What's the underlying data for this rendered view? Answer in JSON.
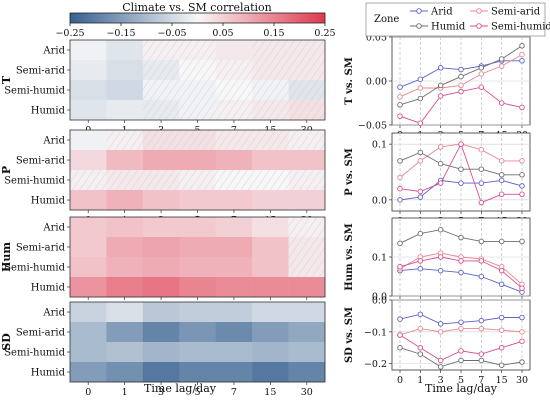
{
  "figure": {
    "colorbar": {
      "title": "Climate vs. SM correlation",
      "min": -0.25,
      "max": 0.25,
      "ticks": [
        "−0.25",
        "−0.15",
        "−0.05",
        "0.05",
        "0.15",
        "0.25"
      ],
      "low_color": "#35608f",
      "mid_color": "#f7f7f8",
      "high_color": "#e0384d"
    },
    "x_label": "Time lag/day",
    "lags": [
      "0",
      "1",
      "3",
      "5",
      "7",
      "15",
      "30"
    ],
    "zones": [
      "Arid",
      "Semi-arid",
      "Semi-humid",
      "Humid"
    ],
    "legend": {
      "title": "Zone",
      "entries": [
        "Arid",
        "Semi-arid",
        "Humid",
        "Semi-humid"
      ]
    },
    "zone_colors": {
      "Arid": "#5b62c9",
      "Semi-arid": "#e8878f",
      "Semi-humid": "#d94f8e",
      "Humid": "#6e6e6e"
    }
  },
  "chart_data": [
    {
      "type": "heatmap",
      "title": "T",
      "rows": [
        "Arid",
        "Semi-arid",
        "Semi-humid",
        "Humid"
      ],
      "columns": [
        "0",
        "1",
        "3",
        "5",
        "7",
        "15",
        "30"
      ],
      "values": [
        [
          -0.01,
          -0.03,
          0.01,
          0.01,
          0.02,
          0.02,
          0.02
        ],
        [
          -0.02,
          -0.04,
          -0.02,
          0.0,
          0.01,
          0.02,
          0.02
        ],
        [
          -0.04,
          -0.05,
          -0.01,
          -0.01,
          0.0,
          -0.01,
          -0.03
        ],
        [
          -0.03,
          -0.02,
          -0.02,
          -0.01,
          0.01,
          0.02,
          0.03
        ]
      ],
      "hatched": [
        [
          false,
          false,
          true,
          true,
          false,
          true,
          true
        ],
        [
          false,
          false,
          true,
          true,
          true,
          true,
          true
        ],
        [
          false,
          false,
          true,
          true,
          true,
          true,
          true
        ],
        [
          false,
          false,
          true,
          true,
          true,
          true,
          true
        ]
      ]
    },
    {
      "type": "heatmap",
      "title": "P",
      "rows": [
        "Arid",
        "Semi-arid",
        "Semi-humid",
        "Humid"
      ],
      "columns": [
        "0",
        "1",
        "3",
        "5",
        "7",
        "15",
        "30"
      ],
      "values": [
        [
          -0.01,
          0.01,
          0.03,
          0.03,
          0.02,
          0.02,
          0.01
        ],
        [
          0.04,
          0.08,
          0.1,
          0.1,
          0.09,
          0.07,
          0.07
        ],
        [
          0.01,
          0.02,
          0.02,
          0.01,
          0.0,
          0.0,
          0.01
        ],
        [
          0.07,
          0.09,
          0.07,
          0.06,
          0.06,
          0.05,
          0.05
        ]
      ],
      "hatched": [
        [
          false,
          true,
          true,
          true,
          true,
          true,
          true
        ],
        [
          false,
          false,
          false,
          false,
          false,
          false,
          false
        ],
        [
          true,
          true,
          true,
          true,
          true,
          true,
          true
        ],
        [
          false,
          false,
          false,
          false,
          false,
          false,
          false
        ]
      ]
    },
    {
      "type": "heatmap",
      "title": "Hum",
      "rows": [
        "Arid",
        "Semi-arid",
        "Semi-humid",
        "Humid"
      ],
      "columns": [
        "0",
        "1",
        "3",
        "5",
        "7",
        "15",
        "30"
      ],
      "values": [
        [
          0.06,
          0.07,
          0.06,
          0.06,
          0.05,
          0.03,
          0.01
        ],
        [
          0.06,
          0.1,
          0.11,
          0.1,
          0.1,
          0.07,
          0.02
        ],
        [
          0.07,
          0.09,
          0.1,
          0.09,
          0.09,
          0.07,
          0.02
        ],
        [
          0.13,
          0.16,
          0.17,
          0.15,
          0.14,
          0.14,
          0.14
        ]
      ],
      "hatched": [
        [
          false,
          false,
          false,
          false,
          false,
          false,
          true
        ],
        [
          false,
          false,
          false,
          false,
          false,
          false,
          true
        ],
        [
          false,
          false,
          false,
          false,
          false,
          false,
          true
        ],
        [
          false,
          false,
          false,
          false,
          false,
          false,
          false
        ]
      ]
    },
    {
      "type": "heatmap",
      "title": "SD",
      "rows": [
        "Arid",
        "Semi-arid",
        "Semi-humid",
        "Humid"
      ],
      "columns": [
        "0",
        "1",
        "3",
        "5",
        "7",
        "15",
        "30"
      ],
      "values": [
        [
          -0.06,
          -0.04,
          -0.08,
          -0.07,
          -0.07,
          -0.05,
          -0.05
        ],
        [
          -0.1,
          -0.15,
          -0.19,
          -0.16,
          -0.18,
          -0.15,
          -0.13
        ],
        [
          -0.1,
          -0.09,
          -0.11,
          -0.1,
          -0.1,
          -0.11,
          -0.1
        ],
        [
          -0.15,
          -0.17,
          -0.21,
          -0.19,
          -0.19,
          -0.21,
          -0.19
        ]
      ],
      "hatched": [
        [
          false,
          false,
          false,
          false,
          false,
          false,
          false
        ],
        [
          false,
          false,
          false,
          false,
          false,
          false,
          false
        ],
        [
          false,
          false,
          false,
          false,
          false,
          false,
          false
        ],
        [
          false,
          false,
          false,
          false,
          false,
          false,
          false
        ]
      ]
    },
    {
      "type": "line",
      "ylabel": "T vs. SM",
      "x": [
        "0",
        "1",
        "3",
        "5",
        "7",
        "15",
        "30"
      ],
      "ylim": [
        -0.05,
        0.05
      ],
      "yticks": [
        "−0.05",
        "0.00",
        "0.05"
      ],
      "grid": true,
      "series": [
        {
          "name": "Arid",
          "values": [
            -0.007,
            0.002,
            0.015,
            0.013,
            0.017,
            0.023,
            0.023
          ]
        },
        {
          "name": "Semi-arid",
          "values": [
            -0.018,
            -0.008,
            -0.008,
            -0.005,
            0.008,
            0.017,
            0.03
          ]
        },
        {
          "name": "Humid",
          "values": [
            -0.027,
            -0.02,
            -0.005,
            0.005,
            0.015,
            0.025,
            0.04
          ]
        },
        {
          "name": "Semi-humid",
          "values": [
            -0.04,
            -0.048,
            -0.017,
            -0.012,
            -0.007,
            -0.025,
            -0.03
          ]
        }
      ]
    },
    {
      "type": "line",
      "ylabel": "P vs. SM",
      "x": [
        "0",
        "1",
        "3",
        "5",
        "7",
        "15",
        "30"
      ],
      "ylim": [
        -0.02,
        0.12
      ],
      "yticks": [
        "0.0",
        "0.1"
      ],
      "grid": true,
      "series": [
        {
          "name": "Arid",
          "values": [
            0.0,
            0.005,
            0.035,
            0.03,
            0.03,
            0.035,
            0.025
          ]
        },
        {
          "name": "Semi-arid",
          "values": [
            0.04,
            0.07,
            0.095,
            0.1,
            0.09,
            0.07,
            0.07
          ]
        },
        {
          "name": "Humid",
          "values": [
            0.07,
            0.085,
            0.065,
            0.055,
            0.055,
            0.045,
            0.045
          ]
        },
        {
          "name": "Semi-humid",
          "values": [
            0.02,
            0.015,
            0.03,
            0.1,
            -0.005,
            0.01,
            0.01
          ]
        }
      ]
    },
    {
      "type": "line",
      "ylabel": "Hum vs. SM",
      "x": [
        "0",
        "1",
        "3",
        "5",
        "7",
        "15",
        "30"
      ],
      "ylim": [
        0.0,
        0.2
      ],
      "yticks": [
        "0.0",
        "0.1"
      ],
      "grid": true,
      "series": [
        {
          "name": "Arid",
          "values": [
            0.065,
            0.07,
            0.065,
            0.06,
            0.05,
            0.03,
            0.01
          ]
        },
        {
          "name": "Semi-arid",
          "values": [
            0.07,
            0.1,
            0.11,
            0.1,
            0.095,
            0.075,
            0.03
          ]
        },
        {
          "name": "Humid",
          "values": [
            0.135,
            0.16,
            0.17,
            0.15,
            0.14,
            0.14,
            0.14
          ]
        },
        {
          "name": "Semi-humid",
          "values": [
            0.075,
            0.09,
            0.1,
            0.09,
            0.09,
            0.065,
            0.02
          ]
        }
      ]
    },
    {
      "type": "line",
      "ylabel": "SD vs. SM",
      "x": [
        "0",
        "1",
        "3",
        "5",
        "7",
        "15",
        "30"
      ],
      "ylim": [
        -0.22,
        0.0
      ],
      "yticks": [
        "−0.2",
        "−0.1",
        "0.0"
      ],
      "grid": true,
      "series": [
        {
          "name": "Arid",
          "values": [
            -0.06,
            -0.045,
            -0.075,
            -0.07,
            -0.065,
            -0.055,
            -0.055
          ]
        },
        {
          "name": "Semi-arid",
          "values": [
            -0.11,
            -0.09,
            -0.1,
            -0.09,
            -0.09,
            -0.095,
            -0.1
          ]
        },
        {
          "name": "Humid",
          "values": [
            -0.15,
            -0.17,
            -0.21,
            -0.19,
            -0.19,
            -0.205,
            -0.195
          ]
        },
        {
          "name": "Semi-humid",
          "values": [
            -0.11,
            -0.15,
            -0.19,
            -0.16,
            -0.17,
            -0.15,
            -0.13
          ]
        }
      ]
    }
  ]
}
